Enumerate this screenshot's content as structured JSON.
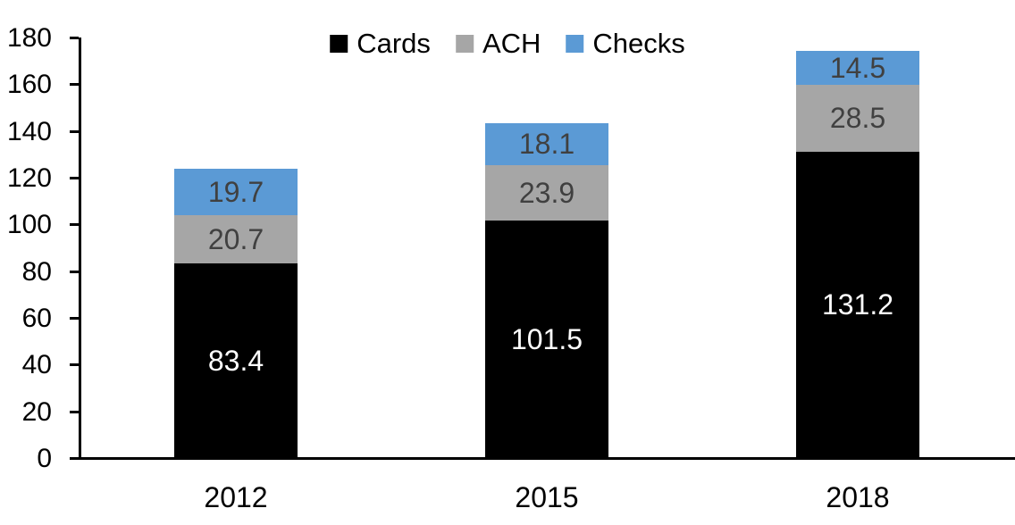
{
  "chart_data": {
    "type": "bar",
    "stacked": true,
    "categories": [
      "2012",
      "2015",
      "2018"
    ],
    "series": [
      {
        "name": "Cards",
        "color": "#000000",
        "label_color": "#ffffff",
        "values": [
          83.4,
          101.5,
          131.2
        ]
      },
      {
        "name": "ACH",
        "color": "#a6a6a6",
        "label_color": "#404040",
        "values": [
          20.7,
          23.9,
          28.5
        ]
      },
      {
        "name": "Checks",
        "color": "#5b9ad5",
        "label_color": "#404040",
        "values": [
          19.7,
          18.1,
          14.5
        ]
      }
    ],
    "totals": [
      123.8,
      143.5,
      174.2
    ],
    "ylim": [
      0,
      180
    ],
    "yticks": [
      0,
      20,
      40,
      60,
      80,
      100,
      120,
      140,
      160,
      180
    ],
    "grid": false,
    "legend_position": "top-center",
    "legend_entries": [
      "Cards",
      "ACH",
      "Checks"
    ],
    "axis_color": "#000000"
  }
}
